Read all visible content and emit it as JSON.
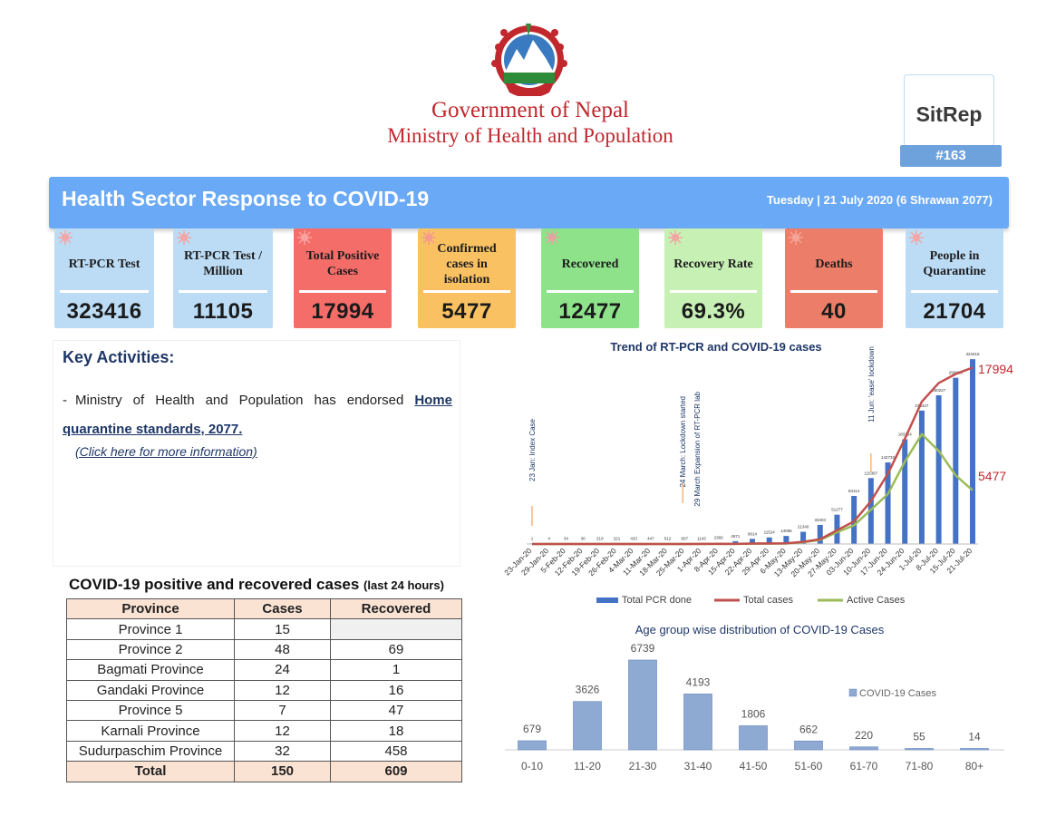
{
  "header": {
    "gov_line1": "Government of Nepal",
    "gov_line2": "Ministry of Health and Population",
    "sitrep_label": "SitRep",
    "sitrep_number": "#163",
    "logo_icon": "nepal-emblem-icon"
  },
  "banner": {
    "title": "Health Sector Response to COVID-19",
    "date": "Tuesday | 21 July 2020 (6 Shrawan 2077)"
  },
  "cards": [
    {
      "label": "RT-PCR Test",
      "value": "323416"
    },
    {
      "label": "RT-PCR Test / Million",
      "value": "11105"
    },
    {
      "label": "Total Positive Cases",
      "value": "17994"
    },
    {
      "label": "Confirmed cases in isolation",
      "value": "5477"
    },
    {
      "label": "Recovered",
      "value": "12477"
    },
    {
      "label": "Recovery Rate",
      "value": "69.3%"
    },
    {
      "label": "Deaths",
      "value": "40"
    },
    {
      "label": "People in Quarantine",
      "value": "21704"
    }
  ],
  "key_activities": {
    "title": "Key Activities:",
    "dash": "-",
    "text": "Ministry of Health and Population has endorsed ",
    "link_text": "Home quarantine standards, 2077.",
    "more": "(Click here for more information)"
  },
  "province_table": {
    "title": "COVID-19 positive and recovered cases",
    "title_note": "(last 24 hours)",
    "headers": [
      "Province",
      "Cases",
      "Recovered"
    ],
    "rows": [
      [
        "Province 1",
        "15",
        ""
      ],
      [
        "Province 2",
        "48",
        "69"
      ],
      [
        "Bagmati Province",
        "24",
        "1"
      ],
      [
        "Gandaki Province",
        "12",
        "16"
      ],
      [
        "Province 5",
        "7",
        "47"
      ],
      [
        "Karnali Province",
        "12",
        "18"
      ],
      [
        "Sudurpaschim Province",
        "32",
        "458"
      ]
    ],
    "total": [
      "Total",
      "150",
      "609"
    ]
  },
  "chart_data": [
    {
      "type": "bar",
      "title": "Trend of RT-PCR and COVID-19 cases",
      "categories": [
        "23-Jan-20",
        "29-Jan-20",
        "5-Feb-20",
        "12-Feb-20",
        "19-Feb-20",
        "26-Feb-20",
        "4-Mar-20",
        "11-Mar-20",
        "18-Mar-20",
        "25-Mar-20",
        "1-Apr-20",
        "8-Apr-20",
        "15-Apr-20",
        "22-Apr-20",
        "29-Apr-20",
        "6-May-20",
        "13-May-20",
        "20-May-20",
        "27-May-20",
        "03-Jun-20",
        "10-Jun-20",
        "17-Jun-20",
        "24-Jun-20",
        "1-Jul-20",
        "8-Jul-20",
        "15-Jul-20",
        "21-Jul-20"
      ],
      "series": [
        {
          "name": "Total PCR done",
          "kind": "bar",
          "color": "#4472c4",
          "values": [
            1,
            4,
            34,
            30,
            210,
            221,
            433,
            447,
            512,
            607,
            1143,
            2366,
            4971,
            9014,
            11524,
            14096,
            21340,
            33404,
            51277,
            84114,
            115387,
            142733,
            183154,
            233427,
            260227,
            290829,
            323416
          ],
          "labels": [
            "1",
            "4",
            "34",
            "30",
            "210",
            "221",
            "433",
            "447",
            "512",
            "607",
            "1143",
            "2366",
            "4971",
            "9014",
            "11524",
            "14096",
            "21340",
            "33404",
            "51277",
            "84114",
            "115387",
            "142733",
            "183154",
            "233427",
            "260227",
            "290829",
            "323416"
          ]
        },
        {
          "name": "Total  cases",
          "kind": "line",
          "color": "#c0504d",
          "values": [
            1,
            1,
            1,
            1,
            1,
            1,
            1,
            1,
            1,
            3,
            6,
            9,
            16,
            45,
            57,
            75,
            217,
            487,
            1401,
            2300,
            4364,
            7177,
            10728,
            14519,
            16423,
            17344,
            17994
          ]
        },
        {
          "name": "Active Cases",
          "kind": "line",
          "color": "#9bbb59",
          "values": [
            1,
            1,
            1,
            1,
            1,
            1,
            1,
            1,
            1,
            3,
            5,
            8,
            10,
            30,
            40,
            50,
            180,
            420,
            1200,
            1900,
            3500,
            5100,
            8400,
            11200,
            9500,
            7000,
            5477
          ]
        }
      ],
      "end_labels": {
        "total": "17994",
        "active": "5477"
      },
      "annotations": [
        {
          "at": 0,
          "text": "23 Jan: Index Case"
        },
        {
          "at": 9,
          "text": "24 March: Lockdown started"
        },
        {
          "at": 9,
          "text": "29 March Expansion of RT-PCR lab"
        },
        {
          "at": 20,
          "text": "11 Jun: 'ease' lockdown"
        }
      ],
      "legend_position": "bottom"
    },
    {
      "type": "bar",
      "title": "Age group wise distribution of COVID-19 Cases",
      "categories": [
        "0-10",
        "11-20",
        "21-30",
        "31-40",
        "41-50",
        "51-60",
        "61-70",
        "71-80",
        "80+"
      ],
      "series": [
        {
          "name": "COVID-19 Cases",
          "values": [
            679,
            3626,
            6739,
            4193,
            1806,
            662,
            220,
            55,
            14
          ],
          "color": "#8ea9d2"
        }
      ],
      "value_labels": [
        "679",
        "3626",
        "6739",
        "4193",
        "1806",
        "662",
        "220",
        "55",
        "14"
      ],
      "legend_position": "right"
    }
  ]
}
